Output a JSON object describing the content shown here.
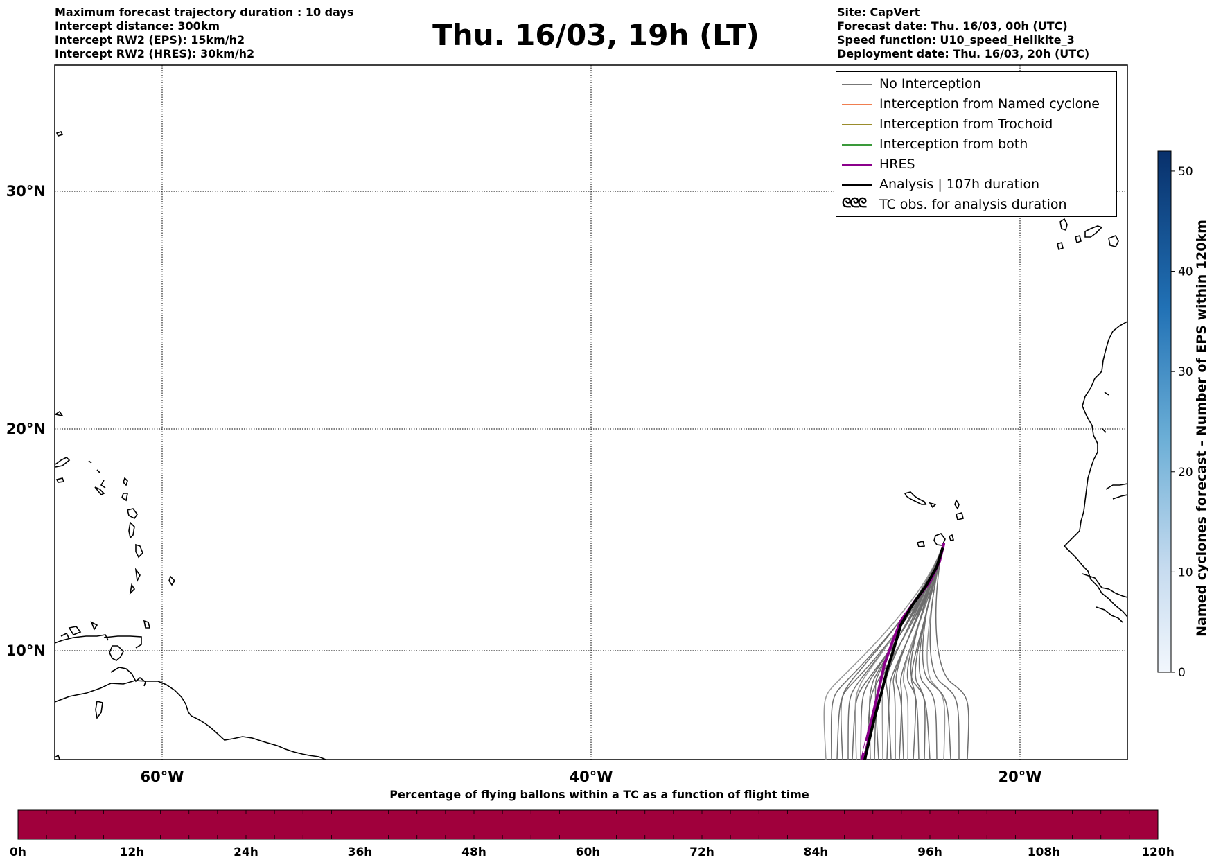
{
  "header": {
    "left_lines": [
      "Maximum forecast trajectory duration : 10 days",
      "Intercept distance: 300km",
      "Intercept RW2 (EPS):  15km/h2",
      "Intercept RW2 (HRES): 30km/h2"
    ],
    "right_lines": [
      "Site: CapVert",
      "Forecast date: Thu. 16/03, 00h (UTC)",
      "Speed function: U10_speed_Helikite_3",
      "Deployment date: Thu. 16/03, 20h (UTC)"
    ],
    "title": "Thu. 16/03, 19h (LT)"
  },
  "map": {
    "lon_labels": [
      "60°W",
      "40°W",
      "20°W"
    ],
    "lat_labels": [
      "30°N",
      "20°N",
      "10°N"
    ],
    "colors": {
      "no_interception": "#777777",
      "hres": "#8b008b",
      "analysis": "#000000"
    }
  },
  "legend": {
    "items": [
      {
        "label": "No Interception",
        "color": "#777777"
      },
      {
        "label": "Interception from Named cyclone",
        "color": "#f07e50"
      },
      {
        "label": "Interception from Trochoid",
        "color": "#9a8c2c"
      },
      {
        "label": "Interception from both",
        "color": "#3a9a3a"
      },
      {
        "label": "HRES",
        "color": "#8b008b"
      },
      {
        "label": "Analysis | 107h duration",
        "color": "#000000"
      },
      {
        "label": "TC obs. for analysis duration",
        "glyph": "ᓂᓂᓂ"
      }
    ]
  },
  "cyclone_colorbar": {
    "label": "Named cyclones forecast - Number of EPS within 120km",
    "ticks": [
      "0",
      "10",
      "20",
      "30",
      "40",
      "50"
    ]
  },
  "flight_bar": {
    "title": "Percentage of flying ballons within a TC as a function of flight time",
    "ticks": [
      "0h",
      "12h",
      "24h",
      "36h",
      "48h",
      "60h",
      "72h",
      "84h",
      "96h",
      "108h",
      "120h"
    ],
    "fill_color": "#a0003c"
  }
}
